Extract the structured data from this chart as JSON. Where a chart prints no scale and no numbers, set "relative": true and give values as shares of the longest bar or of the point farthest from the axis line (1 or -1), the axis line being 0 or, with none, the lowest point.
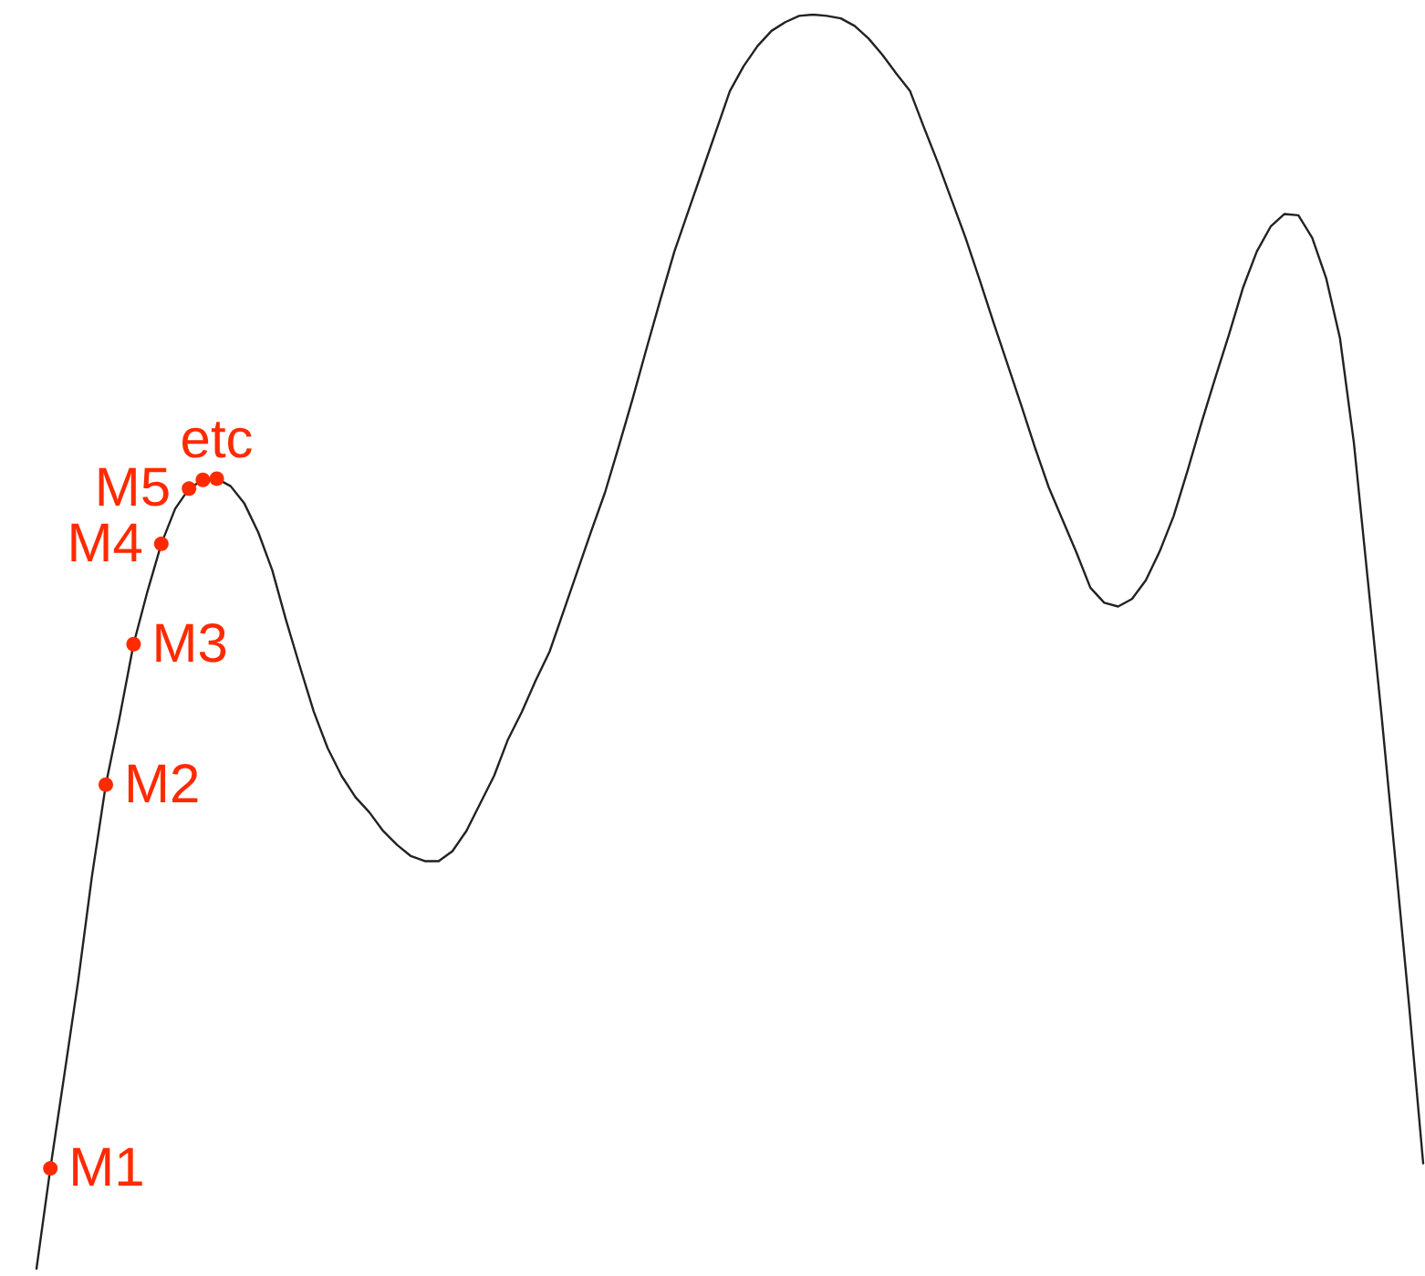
{
  "chart_data": {
    "type": "line",
    "relative": true,
    "tick_labels": false,
    "categories": [
      null,
      null,
      null,
      null,
      null,
      null,
      null,
      null,
      null,
      null,
      null,
      null,
      null,
      null,
      null,
      null,
      null,
      null,
      null,
      null,
      null,
      null,
      null,
      null,
      null,
      null,
      null,
      null,
      null,
      null,
      null,
      null,
      null,
      null,
      null,
      null,
      null,
      null,
      null,
      null,
      null,
      null,
      null,
      null,
      null,
      null,
      null,
      null,
      null,
      null,
      null,
      null,
      null,
      null,
      null,
      null,
      null,
      null,
      null,
      null,
      null,
      null,
      null,
      null,
      null,
      null,
      null,
      null,
      null,
      null,
      null,
      null,
      null,
      null,
      null,
      null,
      null,
      null,
      null,
      null,
      null,
      null,
      null,
      null,
      null,
      null,
      null,
      null,
      null,
      null,
      null,
      null,
      null,
      null,
      null,
      null,
      null,
      null,
      null,
      null,
      null
    ],
    "series": [
      {
        "color": "#222222",
        "values": [
          0,
          0.08,
          0.154,
          0.229,
          0.313,
          0.386,
          0.44,
          0.498,
          0.54,
          0.578,
          0.606,
          0.622,
          0.629,
          0.63,
          0.624,
          0.61,
          0.587,
          0.557,
          0.517,
          0.48,
          0.444,
          0.415,
          0.393,
          0.376,
          0.364,
          0.349,
          0.338,
          0.329,
          0.325,
          0.325,
          0.333,
          0.349,
          0.371,
          0.393,
          0.422,
          0.444,
          0.469,
          0.492,
          0.524,
          0.556,
          0.588,
          0.619,
          0.656,
          0.694,
          0.734,
          0.773,
          0.811,
          0.843,
          0.875,
          0.907,
          0.939,
          0.959,
          0.975,
          0.987,
          0.994,
          0.999,
          1,
          0.999,
          0.997,
          0.991,
          0.981,
          0.968,
          0.953,
          0.939,
          0.91,
          0.882,
          0.852,
          0.822,
          0.789,
          0.755,
          0.722,
          0.689,
          0.655,
          0.623,
          0.597,
          0.571,
          0.543,
          0.531,
          0.528,
          0.534,
          0.549,
          0.572,
          0.6,
          0.636,
          0.674,
          0.71,
          0.745,
          0.782,
          0.811,
          0.831,
          0.841,
          0.84,
          0.822,
          0.79,
          0.742,
          0.659,
          0.55,
          0.441,
          0.325,
          0.208,
          0.084
        ],
        "colors": [
          null,
          "#ff2a00",
          null,
          null,
          null,
          "#ff2a00",
          null,
          "#ff2a00",
          null,
          "#ff2a00",
          null,
          "#ff2a00",
          "#ff2a00",
          "#ff2a00",
          null,
          null,
          null,
          null,
          null,
          null,
          null,
          null,
          null,
          null,
          null,
          null,
          null,
          null,
          null,
          null,
          null,
          null,
          null,
          null,
          null,
          null,
          null,
          null,
          null,
          null,
          null,
          null,
          null,
          null,
          null,
          null,
          null,
          null,
          null,
          null,
          null,
          null,
          null,
          null,
          null,
          null,
          null,
          null,
          null,
          null,
          null,
          null,
          null,
          null,
          null,
          null,
          null,
          null,
          null,
          null,
          null,
          null,
          null,
          null,
          null,
          null,
          null,
          null,
          null,
          null,
          null,
          null,
          null,
          null,
          null,
          null,
          null,
          null,
          null,
          null,
          null,
          null,
          null,
          null,
          null,
          null,
          null,
          null,
          null,
          null,
          null
        ],
        "marker": "none"
      }
    ],
    "annotations": [
      "M1",
      "M2",
      "M3",
      "M4",
      "M5",
      "etc"
    ]
  }
}
